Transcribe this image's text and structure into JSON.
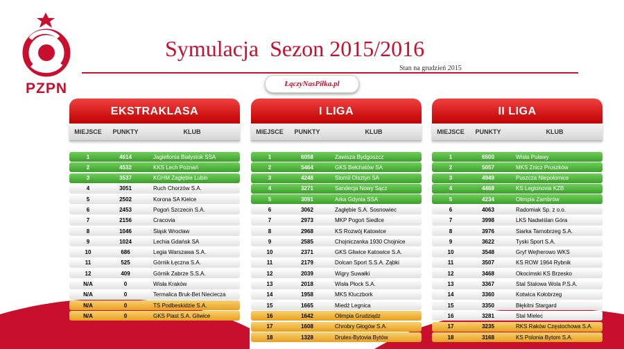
{
  "header": {
    "logo_text": "PZPN",
    "title": "Symulacja  Sezon 2015/2016",
    "subtitle": "Stan na grudzień 2015",
    "badge": "ŁączyNasPiłka.pl"
  },
  "colors": {
    "brand_red": "#c8102e",
    "promotion_green": "#3e9e2c",
    "relegation_orange": "#e8a020"
  },
  "leagues": [
    {
      "name": "EKSTRAKLASA",
      "columns": [
        "MIEJSCE",
        "PUNKTY",
        "KLUB"
      ],
      "rows": [
        {
          "place": "1",
          "points": "4614",
          "club": "Jagiellonia Białystok SSA",
          "status": "green"
        },
        {
          "place": "2",
          "points": "4532",
          "club": "KKS Lech Poznań",
          "status": "green"
        },
        {
          "place": "3",
          "points": "3537",
          "club": "KGHM Zagłębie Lubin",
          "status": "green"
        },
        {
          "place": "4",
          "points": "3051",
          "club": "Ruch Chorzów S.A.",
          "status": "gray"
        },
        {
          "place": "5",
          "points": "2502",
          "club": "Korona SA Kielce",
          "status": "gray"
        },
        {
          "place": "6",
          "points": "2453",
          "club": "Pogoń Szczecin S.A.",
          "status": "gray"
        },
        {
          "place": "7",
          "points": "2156",
          "club": "Cracovia",
          "status": "gray"
        },
        {
          "place": "8",
          "points": "1046",
          "club": "Śląsk Wrocław",
          "status": "gray"
        },
        {
          "place": "9",
          "points": "1024",
          "club": "Lechia Gdańsk SA",
          "status": "gray"
        },
        {
          "place": "10",
          "points": "686",
          "club": "Legia Warszawa S.A.",
          "status": "gray"
        },
        {
          "place": "11",
          "points": "525",
          "club": "Górnik Łęczna S.A.",
          "status": "gray"
        },
        {
          "place": "12",
          "points": "409",
          "club": "Górnik Zabrze S.S.A.",
          "status": "gray"
        },
        {
          "place": "N/A",
          "points": "0",
          "club": "Wisła Kraków",
          "status": "gray"
        },
        {
          "place": "N/A",
          "points": "0",
          "club": "Termalica Bruk-Bet Nieciecza",
          "status": "gray"
        },
        {
          "place": "N/A",
          "points": "0",
          "club": "TS Podbeskidzie S.A.",
          "status": "orange"
        },
        {
          "place": "N/A",
          "points": "0",
          "club": "GKS Piast S.A. Gliwice",
          "status": "orange"
        }
      ]
    },
    {
      "name": "I LIGA",
      "columns": [
        "MIEJSCE",
        "PUNKTY",
        "KLUB"
      ],
      "rows": [
        {
          "place": "1",
          "points": "6058",
          "club": "Zawisza Bydgoszcz",
          "status": "green"
        },
        {
          "place": "2",
          "points": "5464",
          "club": "GKS Bełchatów SA",
          "status": "green"
        },
        {
          "place": "3",
          "points": "4248",
          "club": "Stomil Olsztyn SA",
          "status": "green"
        },
        {
          "place": "4",
          "points": "3271",
          "club": "Sandecja Nowy Sącz",
          "status": "green"
        },
        {
          "place": "5",
          "points": "3091",
          "club": "Arka Gdynia SSA",
          "status": "green"
        },
        {
          "place": "6",
          "points": "3062",
          "club": "Zagłębie S.A. Sosnowiec",
          "status": "gray"
        },
        {
          "place": "7",
          "points": "2973",
          "club": "MKP Pogoń Siedlce",
          "status": "gray"
        },
        {
          "place": "8",
          "points": "2968",
          "club": "KS Rozwój Katowice",
          "status": "gray"
        },
        {
          "place": "9",
          "points": "2585",
          "club": "Chojniczanka 1930 Chojnice",
          "status": "gray"
        },
        {
          "place": "10",
          "points": "2371",
          "club": "GKS Gliwice Katowice S.A.",
          "status": "gray"
        },
        {
          "place": "11",
          "points": "2179",
          "club": "Dolcan Sport S.S.A. Ząbki",
          "status": "gray"
        },
        {
          "place": "12",
          "points": "2039",
          "club": "Wigry Suwałki",
          "status": "gray"
        },
        {
          "place": "13",
          "points": "2018",
          "club": "Wisła Płock S.A.",
          "status": "gray"
        },
        {
          "place": "14",
          "points": "1958",
          "club": "MKS Kluczbork",
          "status": "gray"
        },
        {
          "place": "15",
          "points": "1665",
          "club": "Miedź Legnica",
          "status": "gray"
        },
        {
          "place": "16",
          "points": "1642",
          "club": "Olimpia Grudziądz",
          "status": "orange"
        },
        {
          "place": "17",
          "points": "1608",
          "club": "Chrobry Głogów S.A.",
          "status": "orange"
        },
        {
          "place": "18",
          "points": "1328",
          "club": "Drutex-Bytovia Bytów",
          "status": "orange"
        }
      ]
    },
    {
      "name": "II LIGA",
      "columns": [
        "MIEJSCE",
        "PUNKTY",
        "KLUB"
      ],
      "rows": [
        {
          "place": "1",
          "points": "6500",
          "club": "Wisła Puławy",
          "status": "green"
        },
        {
          "place": "2",
          "points": "5057",
          "club": "MKS Znicz Pruszków",
          "status": "green"
        },
        {
          "place": "3",
          "points": "4949",
          "club": "Puszcza Niepołomice",
          "status": "green"
        },
        {
          "place": "4",
          "points": "4468",
          "club": "KS Legionovia KZB",
          "status": "green"
        },
        {
          "place": "5",
          "points": "4234",
          "club": "Olimpia Zambrów",
          "status": "green"
        },
        {
          "place": "6",
          "points": "4063",
          "club": "Radomiak Sp. z o.o.",
          "status": "gray"
        },
        {
          "place": "7",
          "points": "3998",
          "club": "LKS Nadwiślan Góra",
          "status": "gray"
        },
        {
          "place": "8",
          "points": "3976",
          "club": "Siarka Tarnobrzeg S.A.",
          "status": "gray"
        },
        {
          "place": "9",
          "points": "3622",
          "club": "Tyski Sport S.A.",
          "status": "gray"
        },
        {
          "place": "10",
          "points": "3548",
          "club": "Gryf Wejherowo WKS",
          "status": "gray"
        },
        {
          "place": "11",
          "points": "3507",
          "club": "KS ROW 1964 Rybnik",
          "status": "gray"
        },
        {
          "place": "12",
          "points": "3468",
          "club": "Okocimski KS Brzesko",
          "status": "gray"
        },
        {
          "place": "13",
          "points": "3367",
          "club": "Stal Stalowa Wola P.S.A.",
          "status": "gray"
        },
        {
          "place": "14",
          "points": "3360",
          "club": "Kotwica Kołobrzeg",
          "status": "gray"
        },
        {
          "place": "15",
          "points": "3350",
          "club": "Błękitni Stargard",
          "status": "gray"
        },
        {
          "place": "16",
          "points": "3281",
          "club": "Stal Mielec",
          "status": "gray"
        },
        {
          "place": "17",
          "points": "3235",
          "club": "RKS Raków Częstochowa S.A.",
          "status": "orange"
        },
        {
          "place": "18",
          "points": "3168",
          "club": "KS Polonia Bytom S.A.",
          "status": "orange"
        }
      ]
    }
  ]
}
